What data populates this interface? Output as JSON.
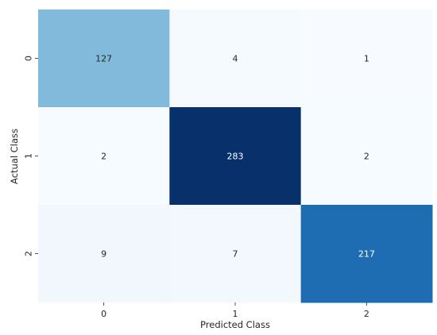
{
  "chart_data": {
    "type": "heatmap",
    "title": "",
    "xlabel": "Predicted Class",
    "ylabel": "Actual Class",
    "x_categories": [
      "0",
      "1",
      "2"
    ],
    "y_categories": [
      "0",
      "1",
      "2"
    ],
    "values": [
      [
        127,
        4,
        1
      ],
      [
        2,
        283,
        2
      ],
      [
        9,
        7,
        217
      ]
    ],
    "colormap": "Blues",
    "color_low": "#f7fbff",
    "color_high": "#08306b",
    "colorbar": false,
    "grid": false
  }
}
